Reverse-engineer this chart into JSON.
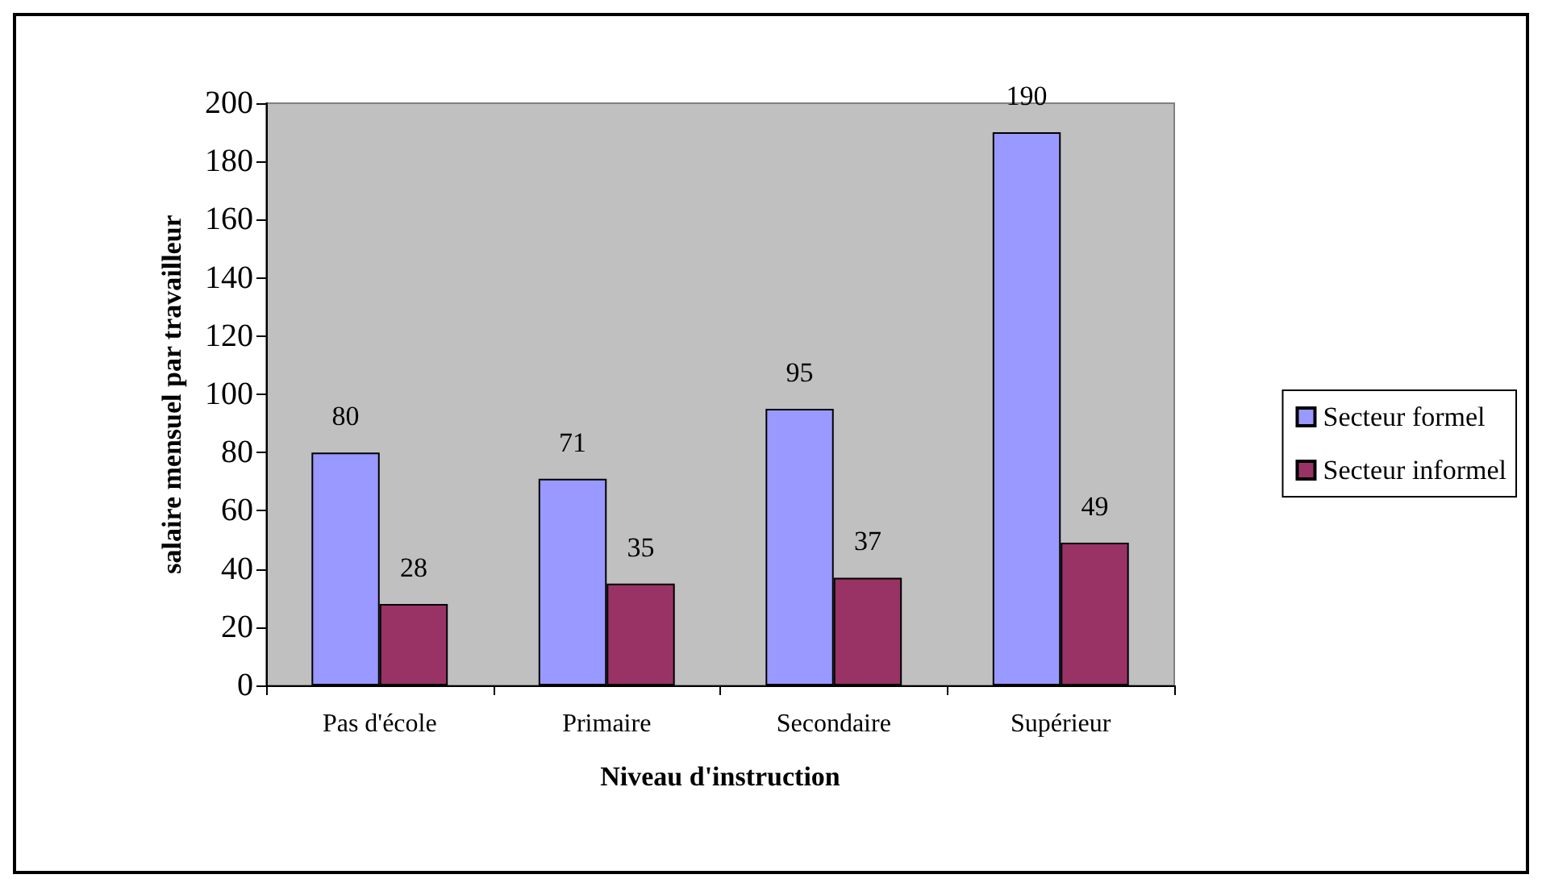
{
  "chart_data": {
    "type": "bar",
    "xlabel": "Niveau d'instruction",
    "ylabel": "salaire mensuel par travailleur",
    "categories": [
      "Pas d'école",
      "Primaire",
      "Secondaire",
      "Supérieur"
    ],
    "series": [
      {
        "name": "Secteur formel",
        "color": "#9999ff",
        "values": [
          80,
          71,
          95,
          190
        ]
      },
      {
        "name": "Secteur informel",
        "color": "#993366",
        "values": [
          28,
          35,
          37,
          49
        ]
      }
    ],
    "ylim": [
      0,
      200
    ],
    "yticks": [
      0,
      20,
      40,
      60,
      80,
      100,
      120,
      140,
      160,
      180,
      200
    ],
    "grid": false,
    "legend": "right",
    "data_labels": true
  }
}
